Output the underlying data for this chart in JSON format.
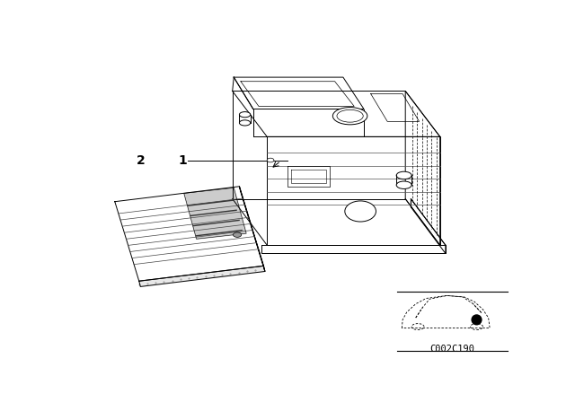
{
  "bg_color": "#ffffff",
  "line_color": "#000000",
  "label1": "1",
  "label2": "2",
  "ref_code": "C002C190",
  "fig_width": 6.4,
  "fig_height": 4.48,
  "dpi": 100
}
